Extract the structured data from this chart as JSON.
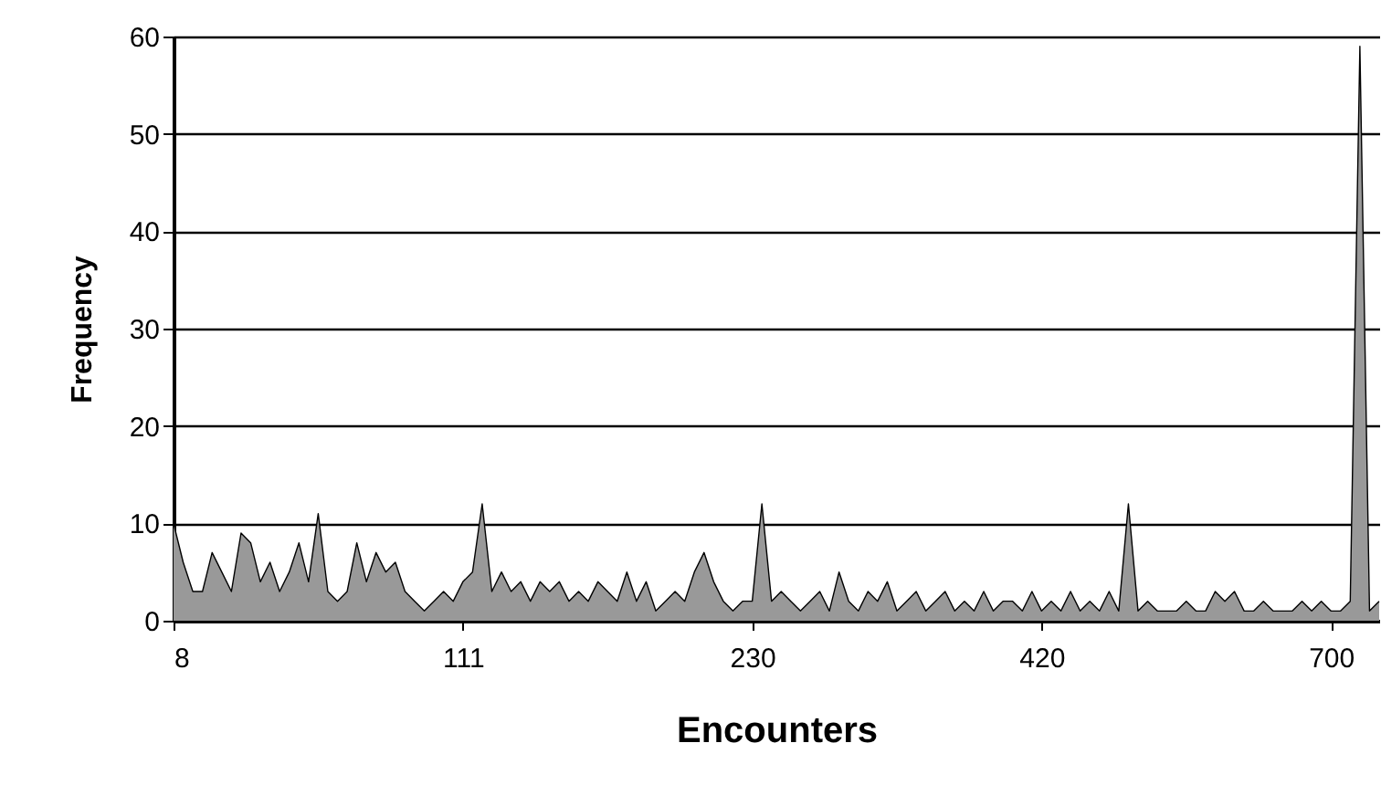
{
  "chart_data": {
    "type": "area",
    "xlabel": "Encounters",
    "ylabel": "Frequency",
    "categories": [
      "8",
      null,
      null,
      null,
      null,
      null,
      null,
      null,
      null,
      null,
      null,
      null,
      null,
      null,
      null,
      null,
      null,
      null,
      null,
      null,
      null,
      null,
      null,
      null,
      null,
      null,
      null,
      null,
      null,
      null,
      "111",
      null,
      null,
      null,
      null,
      null,
      null,
      null,
      null,
      null,
      null,
      null,
      null,
      null,
      null,
      null,
      null,
      null,
      null,
      null,
      null,
      null,
      null,
      null,
      null,
      null,
      null,
      null,
      null,
      null,
      "230",
      null,
      null,
      null,
      null,
      null,
      null,
      null,
      null,
      null,
      null,
      null,
      null,
      null,
      null,
      null,
      null,
      null,
      null,
      null,
      null,
      null,
      null,
      null,
      null,
      null,
      null,
      null,
      null,
      null,
      "420",
      null,
      null,
      null,
      null,
      null,
      null,
      null,
      null,
      null,
      null,
      null,
      null,
      null,
      null,
      null,
      null,
      null,
      null,
      null,
      null,
      null,
      null,
      null,
      null,
      null,
      null,
      null,
      null,
      null,
      "700",
      null,
      null,
      null,
      null,
      null
    ],
    "series": [
      {
        "color": "#999999",
        "values": [
          10,
          6,
          3,
          3,
          7,
          5,
          3,
          9,
          8,
          4,
          6,
          3,
          5,
          8,
          4,
          11,
          3,
          2,
          3,
          8,
          4,
          7,
          5,
          6,
          3,
          2,
          1,
          2,
          3,
          2,
          4,
          5,
          12,
          3,
          5,
          3,
          4,
          2,
          4,
          3,
          4,
          2,
          3,
          2,
          4,
          3,
          2,
          5,
          2,
          4,
          1,
          2,
          3,
          2,
          5,
          7,
          4,
          2,
          1,
          2,
          2,
          12,
          2,
          3,
          2,
          1,
          2,
          3,
          1,
          5,
          2,
          1,
          3,
          2,
          4,
          1,
          2,
          3,
          1,
          2,
          3,
          1,
          2,
          1,
          3,
          1,
          2,
          2,
          1,
          3,
          1,
          2,
          1,
          3,
          1,
          2,
          1,
          3,
          1,
          12,
          1,
          2,
          1,
          1,
          1,
          2,
          1,
          1,
          3,
          2,
          3,
          1,
          1,
          2,
          1,
          1,
          1,
          2,
          1,
          2,
          1,
          1,
          2,
          59,
          1,
          2
        ]
      }
    ],
    "ylim": [
      0,
      60
    ],
    "yticks": [
      0,
      10,
      20,
      30,
      40,
      50,
      60
    ],
    "grid": "y"
  }
}
